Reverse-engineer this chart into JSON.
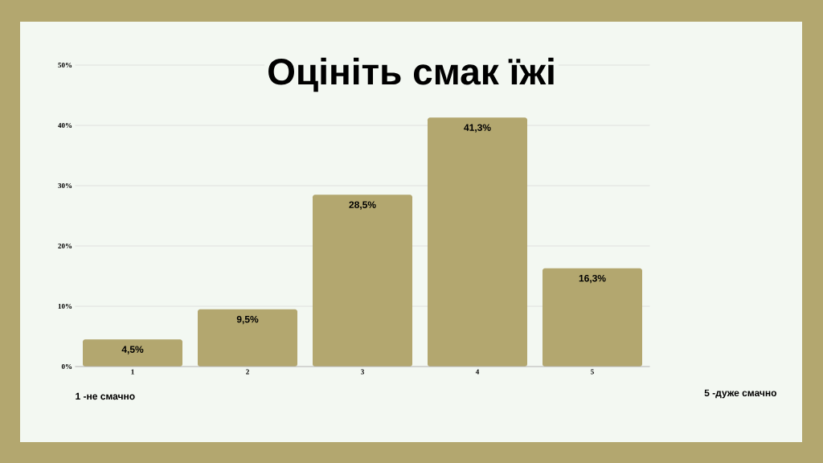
{
  "chart_data": {
    "type": "bar",
    "title": "Оцініть смак їжі",
    "categories": [
      "1",
      "2",
      "3",
      "4",
      "5"
    ],
    "values": [
      4.5,
      9.5,
      28.5,
      41.3,
      16.3
    ],
    "value_labels": [
      "4,5%",
      "9,5%",
      "28,5%",
      "41,3%",
      "16,3%"
    ],
    "color": "#b3a76f",
    "ylim": [
      0,
      50
    ],
    "yticks": [
      {
        "value": 0,
        "label": "0%"
      },
      {
        "value": 10,
        "label": "10%"
      },
      {
        "value": 20,
        "label": "20%"
      },
      {
        "value": 30,
        "label": "30%"
      },
      {
        "value": 40,
        "label": "40%"
      },
      {
        "value": 50,
        "label": "50%"
      }
    ],
    "grid": "y",
    "annotations": [
      "1 -не смачно",
      "5 -дуже смачно"
    ]
  }
}
